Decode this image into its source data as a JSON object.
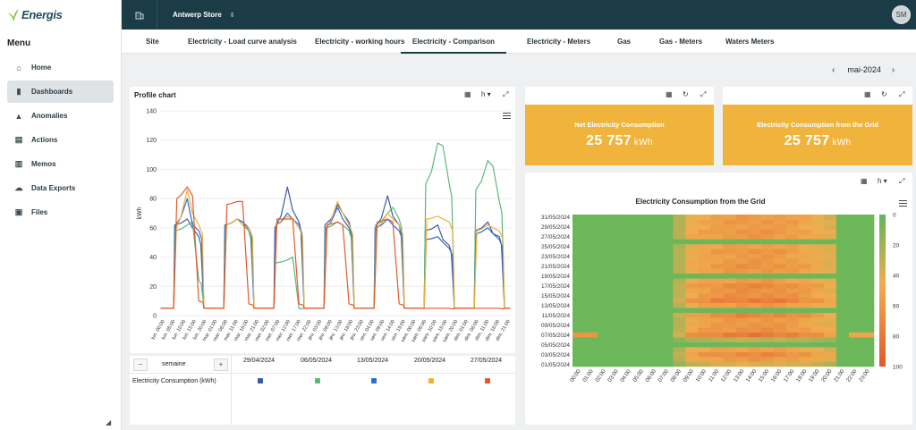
{
  "app": {
    "logo_text": "Energis"
  },
  "sidebar": {
    "menu_title": "Menu",
    "items": [
      {
        "label": "Home",
        "icon": "home-icon",
        "active": false
      },
      {
        "label": "Dashboards",
        "icon": "bar-chart-icon",
        "active": true
      },
      {
        "label": "Anomalies",
        "icon": "warning-icon",
        "active": false
      },
      {
        "label": "Actions",
        "icon": "document-icon",
        "active": false
      },
      {
        "label": "Memos",
        "icon": "memo-icon",
        "active": false
      },
      {
        "label": "Data Exports",
        "icon": "cloud-download-icon",
        "active": false
      },
      {
        "label": "Files",
        "icon": "archive-icon",
        "active": false
      }
    ]
  },
  "topbar": {
    "store": "Antwerp Store",
    "avatar": "SM",
    "bg_color": "#1b3b47"
  },
  "tabs": [
    {
      "label": "Site",
      "active": false
    },
    {
      "label": "Electricity - Load curve analysis",
      "active": false
    },
    {
      "label": "Electricity - working hours",
      "active": false
    },
    {
      "label": "Electricity - Comparison",
      "active": true
    },
    {
      "label": "Electricity - Meters",
      "active": false
    },
    {
      "label": "Gas",
      "active": false
    },
    {
      "label": "Gas - Meters",
      "active": false
    },
    {
      "label": "Waters Meters",
      "active": false
    }
  ],
  "month_nav": {
    "label": "mai-2024"
  },
  "profile_card": {
    "title": "Profile chart",
    "resolution": "h"
  },
  "kpis": [
    {
      "title": "Net Electricity Consumption",
      "value": "25 757",
      "unit": "kWh",
      "color": "#f0b43c"
    },
    {
      "title": "Electricity Consumption from the Grid",
      "value": "25 757",
      "unit": "kWh",
      "color": "#f0b43c"
    }
  ],
  "heatmap_card": {
    "resolution": "h"
  },
  "summary": {
    "period": "semaine",
    "minus": "−",
    "plus": "+",
    "row_label": "Electricity Consumption (kWh)",
    "weeks": [
      {
        "label": "29/04/2024",
        "color": "#3a5ba9"
      },
      {
        "label": "06/05/2024",
        "color": "#5bb77a"
      },
      {
        "label": "13/05/2024",
        "color": "#2f6bd0"
      },
      {
        "label": "20/05/2024",
        "color": "#f2b136"
      },
      {
        "label": "27/05/2024",
        "color": "#e35a2e"
      }
    ]
  },
  "chart_data": [
    {
      "type": "line",
      "title": "",
      "ylabel": "kWh",
      "ylim": [
        0,
        140
      ],
      "yticks": [
        0,
        20,
        40,
        60,
        80,
        100,
        120,
        140
      ],
      "x": [
        "lun. 00:00",
        "lun. 05:00",
        "lun. 10:00",
        "lun. 15:00",
        "lun. 20:00",
        "mar. 01:00",
        "mar. 06:00",
        "mar. 11:00",
        "mar. 16:00",
        "mar. 21:00",
        "mer. 02:00",
        "mer. 07:00",
        "mer. 12:00",
        "mer. 17:00",
        "mer. 22:00",
        "jeu. 03:00",
        "jeu. 08:00",
        "jeu. 13:00",
        "jeu. 18:00",
        "jeu. 23:00",
        "ven. 04:00",
        "ven. 09:00",
        "ven. 14:00",
        "ven. 19:00",
        "sam. 00:00",
        "sam. 05:00",
        "sam. 10:00",
        "sam. 15:00",
        "sam. 20:00",
        "dim. 01:00",
        "dim. 06:00",
        "dim. 11:00",
        "dim. 16:00",
        "dim. 21:00"
      ],
      "series": [
        {
          "color": "#3a5ba9",
          "days": [
            {
              "base": 5,
              "a": 62,
              "b": 66,
              "c": 60,
              "d": 54
            },
            {
              "base": 5,
              "a": 62,
              "b": 66,
              "c": 64,
              "d": 58
            },
            {
              "base": 5,
              "a": 60,
              "b": 88,
              "c": 72,
              "d": 64
            },
            {
              "base": 5,
              "a": 62,
              "b": 76,
              "c": 70,
              "d": 64
            },
            {
              "base": 5,
              "a": 60,
              "b": 82,
              "c": 68,
              "d": 62
            },
            {
              "base": 5,
              "a": 58,
              "b": 62,
              "c": 52,
              "d": 48
            },
            {
              "base": 5,
              "a": 58,
              "b": 64,
              "c": 56,
              "d": 54
            }
          ]
        },
        {
          "color": "#5bb77a",
          "days": [
            {
              "base": 5,
              "a": 58,
              "b": 62,
              "c": 64,
              "d": 24
            },
            {
              "base": 5,
              "a": 62,
              "b": 66,
              "c": 62,
              "d": 58
            },
            {
              "base": 5,
              "a": 36,
              "b": 38,
              "c": 40,
              "d": 5
            },
            {
              "base": 5,
              "a": 60,
              "b": 64,
              "c": 62,
              "d": 58
            },
            {
              "base": 5,
              "a": 62,
              "b": 70,
              "c": 74,
              "d": 66
            },
            {
              "base": 5,
              "a": 90,
              "b": 118,
              "c": 116,
              "d": 90
            },
            {
              "base": 5,
              "a": 86,
              "b": 106,
              "c": 102,
              "d": 78
            }
          ]
        },
        {
          "color": "#2f6bd0",
          "days": [
            {
              "base": 5,
              "a": 62,
              "b": 80,
              "c": 62,
              "d": 58
            },
            {
              "base": 5,
              "a": 62,
              "b": 66,
              "c": 64,
              "d": 60
            },
            {
              "base": 5,
              "a": 62,
              "b": 70,
              "c": 66,
              "d": 62
            },
            {
              "base": 5,
              "a": 60,
              "b": 74,
              "c": 66,
              "d": 60
            },
            {
              "base": 5,
              "a": 60,
              "b": 66,
              "c": 62,
              "d": 58
            },
            {
              "base": 5,
              "a": 52,
              "b": 54,
              "c": 50,
              "d": 46
            },
            {
              "base": 5,
              "a": 56,
              "b": 60,
              "c": 56,
              "d": 52
            }
          ]
        },
        {
          "color": "#f2b136",
          "days": [
            {
              "base": 5,
              "a": 60,
              "b": 86,
              "c": 70,
              "d": 62
            },
            {
              "base": 5,
              "a": 62,
              "b": 66,
              "c": 62,
              "d": 60
            },
            {
              "base": 5,
              "a": 62,
              "b": 68,
              "c": 66,
              "d": 60
            },
            {
              "base": 5,
              "a": 60,
              "b": 78,
              "c": 70,
              "d": 62
            },
            {
              "base": 5,
              "a": 60,
              "b": 70,
              "c": 66,
              "d": 62
            },
            {
              "base": 5,
              "a": 66,
              "b": 68,
              "c": 66,
              "d": 64
            },
            {
              "base": 5,
              "a": 58,
              "b": 62,
              "c": 60,
              "d": 58
            }
          ]
        },
        {
          "color": "#e35a2e",
          "days": [
            {
              "base": 5,
              "a": 80,
              "b": 88,
              "c": 82,
              "d": 10
            },
            {
              "base": 5,
              "a": 76,
              "b": 78,
              "c": 78,
              "d": 8
            },
            {
              "base": 5,
              "a": 66,
              "b": 66,
              "c": 66,
              "d": 8
            },
            {
              "base": 5,
              "a": 62,
              "b": 64,
              "c": 62,
              "d": 8
            },
            {
              "base": 5,
              "a": 64,
              "b": 66,
              "c": 64,
              "d": 8
            },
            {
              "base": 5,
              "a": 5,
              "b": 5,
              "c": 5,
              "d": 5
            },
            {
              "base": 5,
              "a": 5,
              "b": 5,
              "c": 5,
              "d": 5
            }
          ]
        }
      ]
    },
    {
      "type": "heatmap",
      "title": "Electricity Consumption from the Grid",
      "x": [
        "00:00",
        "01:00",
        "02:00",
        "03:00",
        "04:00",
        "05:00",
        "06:00",
        "07:00",
        "08:00",
        "09:00",
        "10:00",
        "11:00",
        "12:00",
        "13:00",
        "14:00",
        "15:00",
        "16:00",
        "17:00",
        "18:00",
        "19:00",
        "20:00",
        "21:00",
        "22:00",
        "23:00"
      ],
      "y": [
        "01/05/2024",
        "02/05/2024",
        "03/05/2024",
        "04/05/2024",
        "05/05/2024",
        "06/05/2024",
        "07/05/2024",
        "08/05/2024",
        "09/05/2024",
        "10/05/2024",
        "11/05/2024",
        "12/05/2024",
        "13/05/2024",
        "14/05/2024",
        "15/05/2024",
        "16/05/2024",
        "17/05/2024",
        "18/05/2024",
        "19/05/2024",
        "20/05/2024",
        "21/05/2024",
        "22/05/2024",
        "23/05/2024",
        "24/05/2024",
        "25/05/2024",
        "26/05/2024",
        "27/05/2024",
        "28/05/2024",
        "29/05/2024",
        "30/05/2024",
        "31/05/2024"
      ],
      "ytick_labels": [
        "01/05/2024",
        "03/05/2024",
        "05/05/2024",
        "07/05/2024",
        "09/05/2024",
        "11/05/2024",
        "13/05/2024",
        "15/05/2024",
        "17/05/2024",
        "19/05/2024",
        "21/05/2024",
        "23/05/2024",
        "25/05/2024",
        "27/05/2024",
        "29/05/2024",
        "31/05/2024"
      ],
      "colorbar": {
        "min": 0,
        "max": 100,
        "ticks": [
          0,
          20,
          40,
          60,
          80,
          100
        ],
        "low_color": "#5cb85c",
        "mid_color": "#f0ad4e",
        "high_color": "#e05a2b"
      },
      "pattern": {
        "off_hours_value": 5,
        "open_hours": [
          8,
          20
        ],
        "daily_peak": [
          40,
          60,
          70,
          55,
          50,
          30,
          80,
          65,
          62,
          60,
          72,
          55,
          60,
          78,
          66,
          65,
          70,
          58,
          52,
          60,
          64,
          60,
          58,
          62,
          56,
          55,
          60,
          62,
          58,
          60,
          58
        ],
        "closed_days": [
          "05/05/2024",
          "12/05/2024",
          "19/05/2024",
          "26/05/2024"
        ]
      }
    }
  ]
}
